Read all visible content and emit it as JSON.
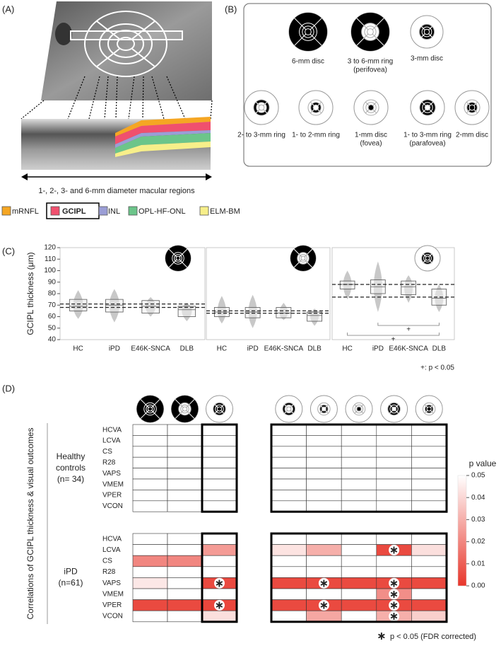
{
  "panel_a": {
    "label": "(A)",
    "caption": "1-, 2-, 3- and 6-mm diameter macular regions",
    "legend": [
      {
        "name": "mRNFL",
        "color": "#f5a623"
      },
      {
        "name": "GCIPL",
        "color": "#f0506e",
        "boxed": true
      },
      {
        "name": "INL",
        "color": "#9b9ed6"
      },
      {
        "name": "OPL-HF-ONL",
        "color": "#6cc58a"
      },
      {
        "name": "ELM-BM",
        "color": "#f7ef8a"
      }
    ]
  },
  "panel_b": {
    "label": "(B)",
    "items": [
      {
        "lines": [
          "6-mm disc"
        ]
      },
      {
        "lines": [
          "3 to 6-mm ring",
          "(perifovea)"
        ]
      },
      {
        "lines": [
          "3-mm disc"
        ]
      },
      {
        "lines": [
          "2- to 3-mm ring"
        ]
      },
      {
        "lines": [
          "1- to 2-mm ring"
        ]
      },
      {
        "lines": [
          "1-mm disc",
          "(fovea)"
        ]
      },
      {
        "lines": [
          "1- to 3-mm ring",
          "(parafovea)"
        ]
      },
      {
        "lines": [
          "2-mm disc"
        ]
      }
    ]
  },
  "panel_c_label": "(C)",
  "panel_d_label": "(D)",
  "chart_data": [
    {
      "type": "box",
      "y_label": "GCIPL thickness (μm)",
      "categories": [
        "HC",
        "iPD",
        "E46K-SNCA",
        "DLB"
      ],
      "ylim": [
        40,
        120
      ],
      "yticks": [
        40,
        50,
        60,
        70,
        80,
        90,
        100,
        110,
        120
      ],
      "whisker_low": [
        58,
        55,
        60,
        56
      ],
      "q1": [
        65,
        64,
        63,
        60
      ],
      "median": [
        69,
        70,
        69,
        66
      ],
      "q3": [
        75,
        75,
        74,
        69
      ],
      "whisker_high": [
        83,
        84,
        77,
        72
      ],
      "reference_lines": [
        71,
        68
      ],
      "color": "#c8c8c8"
    },
    {
      "type": "box",
      "categories": [
        "HC",
        "iPD",
        "E46K-SNCA",
        "DLB"
      ],
      "ylim": [
        40,
        120
      ],
      "whisker_low": [
        54,
        50,
        57,
        52
      ],
      "q1": [
        60,
        59,
        59,
        56
      ],
      "median": [
        64,
        64,
        63,
        61
      ],
      "q3": [
        68,
        68,
        68,
        64
      ],
      "whisker_high": [
        78,
        79,
        72,
        67
      ],
      "reference_lines": [
        65,
        63
      ],
      "color": "#c8c8c8"
    },
    {
      "type": "box",
      "categories": [
        "HC",
        "iPD",
        "E46K-SNCA",
        "DLB"
      ],
      "ylim": [
        40,
        120
      ],
      "whisker_low": [
        75,
        64,
        72,
        64
      ],
      "q1": [
        84,
        80,
        79,
        70
      ],
      "median": [
        88,
        86,
        86,
        76
      ],
      "q3": [
        91,
        92,
        91,
        84
      ],
      "whisker_high": [
        100,
        108,
        96,
        88
      ],
      "reference_lines": [
        88,
        77
      ],
      "color": "#c8c8c8",
      "annotations": [
        "+",
        "+"
      ],
      "note": "+: p < 0.05"
    },
    {
      "type": "heatmap",
      "y_title": "Correlations of GCIPL thickness & visual outcomes",
      "rows": [
        "HCVA",
        "LCVA",
        "CS",
        "R28",
        "VAPS",
        "VMEM",
        "VPER",
        "VCON"
      ],
      "groups": [
        {
          "label_lines": [
            "Healthy",
            "controls",
            "(n= 34)"
          ],
          "values": [
            [
              null,
              null,
              null,
              null,
              null,
              null,
              null,
              null
            ],
            [
              null,
              null,
              null,
              null,
              null,
              null,
              null,
              null
            ],
            [
              null,
              null,
              null,
              null,
              null,
              null,
              null,
              null
            ],
            [
              null,
              null,
              null,
              null,
              null,
              null,
              null,
              null
            ],
            [
              null,
              null,
              null,
              null,
              null,
              null,
              null,
              null
            ],
            [
              null,
              null,
              null,
              null,
              null,
              null,
              null,
              null
            ],
            [
              null,
              null,
              null,
              null,
              null,
              null,
              null,
              null
            ],
            [
              null,
              null,
              null,
              null,
              null,
              null,
              null,
              null
            ]
          ],
          "significant": [
            [
              false,
              false,
              false,
              false,
              false,
              false,
              false,
              false
            ],
            [
              false,
              false,
              false,
              false,
              false,
              false,
              false,
              false
            ],
            [
              false,
              false,
              false,
              false,
              false,
              false,
              false,
              false
            ],
            [
              false,
              false,
              false,
              false,
              false,
              false,
              false,
              false
            ],
            [
              false,
              false,
              false,
              false,
              false,
              false,
              false,
              false
            ],
            [
              false,
              false,
              false,
              false,
              false,
              false,
              false,
              false
            ],
            [
              false,
              false,
              false,
              false,
              false,
              false,
              false,
              false
            ],
            [
              false,
              false,
              false,
              false,
              false,
              false,
              false,
              false
            ]
          ]
        },
        {
          "label_lines": [
            "iPD",
            "(n=61)"
          ],
          "values": [
            [
              null,
              null,
              null,
              null,
              null,
              null,
              null,
              null
            ],
            [
              null,
              null,
              0.025,
              0.043,
              0.03,
              null,
              0.005,
              0.042
            ],
            [
              0.02,
              0.02,
              null,
              null,
              null,
              null,
              null,
              null
            ],
            [
              null,
              null,
              null,
              null,
              null,
              null,
              null,
              null
            ],
            [
              0.044,
              null,
              0.005,
              0.005,
              0.005,
              0.005,
              0.005,
              0.005
            ],
            [
              null,
              null,
              null,
              null,
              null,
              null,
              0.022,
              null
            ],
            [
              0.005,
              0.005,
              0.004,
              0.005,
              0.005,
              0.005,
              0.005,
              0.005
            ],
            [
              null,
              null,
              0.042,
              null,
              0.028,
              null,
              0.03,
              0.038
            ]
          ],
          "significant": [
            [
              false,
              false,
              false,
              false,
              false,
              false,
              false,
              false
            ],
            [
              false,
              false,
              false,
              false,
              false,
              false,
              true,
              false
            ],
            [
              false,
              false,
              false,
              false,
              false,
              false,
              false,
              false
            ],
            [
              false,
              false,
              false,
              false,
              false,
              false,
              false,
              false
            ],
            [
              false,
              false,
              true,
              false,
              true,
              false,
              true,
              false
            ],
            [
              false,
              false,
              false,
              false,
              false,
              false,
              true,
              false
            ],
            [
              false,
              false,
              true,
              false,
              true,
              false,
              true,
              false
            ],
            [
              false,
              false,
              false,
              false,
              false,
              false,
              true,
              false
            ]
          ]
        }
      ],
      "colorbar": {
        "title": "p value",
        "lim": [
          0,
          0.05
        ],
        "colors": [
          "#e8362b",
          "#ffffff"
        ],
        "ticks": [
          {
            "value": 0.05,
            "label": "0.05"
          },
          {
            "value": 0.04,
            "label": "0.04"
          },
          {
            "value": 0.03,
            "label": "0.03"
          },
          {
            "value": 0.02,
            "label": "0.02"
          },
          {
            "value": 0.01,
            "label": "0.01"
          },
          {
            "value": 0,
            "label": "0.00"
          }
        ]
      },
      "marker": "∗",
      "footnote": "p < 0.05 (FDR corrected)"
    }
  ]
}
